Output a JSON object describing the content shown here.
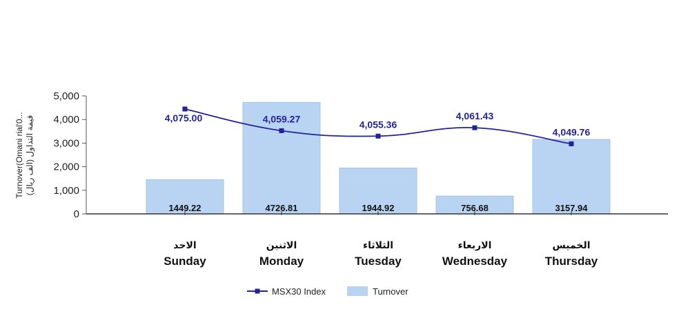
{
  "chart_data": {
    "type": "bar+line",
    "categories": [
      {
        "ar": "الاحد",
        "en": "Sunday"
      },
      {
        "ar": "الاثنين",
        "en": "Monday"
      },
      {
        "ar": "الثلاثاء",
        "en": "Tuesday"
      },
      {
        "ar": "الاربعاء",
        "en": "Wednesday"
      },
      {
        "ar": "الخميس",
        "en": "Thursday"
      }
    ],
    "series": [
      {
        "name": "Turnover",
        "kind": "bar",
        "values": [
          1449.22,
          4726.81,
          1944.92,
          756.68,
          3157.94
        ],
        "labels": [
          "1449.22",
          "4726.81",
          "1944.92",
          "756.68",
          "3157.94"
        ],
        "color": "#b8d4f2"
      },
      {
        "name": "MSX30 Index",
        "kind": "line",
        "values": [
          4075.0,
          4059.27,
          4055.36,
          4061.43,
          4049.76
        ],
        "labels": [
          "4,075.00",
          "4,059.27",
          "4,055.36",
          "4,061.43",
          "4,049.76"
        ],
        "color": "#22229a"
      }
    ],
    "ylabel": "Turnover(Omani rial'0... (قيمة التداول (الف ريال",
    "ylim": [
      0,
      5000
    ],
    "yticks": [
      0,
      1000,
      2000,
      3000,
      4000,
      5000
    ],
    "ytick_labels": [
      "0",
      "1,000",
      "2,000",
      "3,000",
      "4,000",
      "5,000"
    ],
    "line_display_range": [
      4045,
      4080
    ],
    "legend": [
      "MSX30 Index",
      "Turnover"
    ],
    "legend_position": "bottom"
  }
}
